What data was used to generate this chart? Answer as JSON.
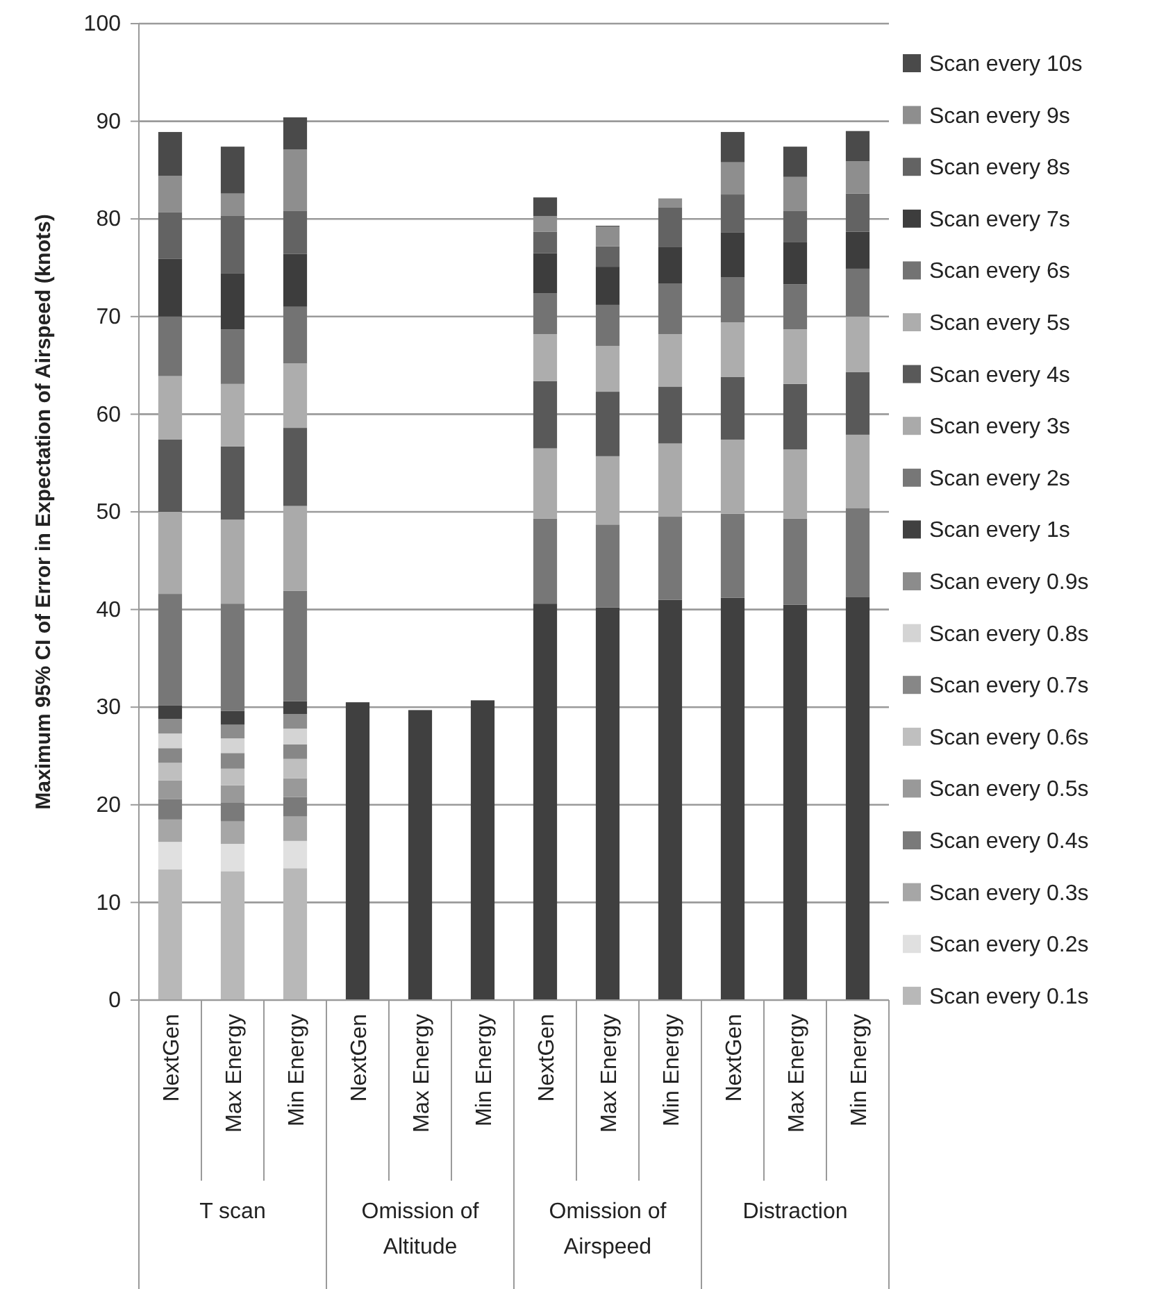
{
  "chart_data": {
    "type": "bar",
    "stacked": true,
    "ylabel": "Maximum 95% CI of Error in Expectation of Airspeed (knots)",
    "categories": [
      "NextGen",
      "Max Energy",
      "Min Energy",
      "NextGen",
      "Max Energy",
      "Min Energy",
      "NextGen",
      "Max Energy",
      "Min Energy",
      "NextGen",
      "Max Energy",
      "Min Energy"
    ],
    "annotations": [
      "T scan",
      "Omission of Altitude",
      "Omission of Airspeed",
      "Distraction"
    ],
    "ylim": [
      0,
      100
    ],
    "yticks": [
      0,
      10,
      20,
      30,
      40,
      50,
      60,
      70,
      80,
      90,
      100
    ],
    "grid": "y",
    "legend": "right",
    "series": [
      {
        "name": "Scan every 0.1s",
        "color": "#b8b8b8",
        "values": [
          13.4,
          13.2,
          13.5,
          0,
          0,
          0,
          0,
          0,
          0,
          0,
          0,
          0
        ]
      },
      {
        "name": "Scan every 0.2s",
        "color": "#e0e0e0",
        "values": [
          2.8,
          2.8,
          2.8,
          0,
          0,
          0,
          0,
          0,
          0,
          0,
          0,
          0
        ]
      },
      {
        "name": "Scan every 0.3s",
        "color": "#a6a6a6",
        "values": [
          2.3,
          2.3,
          2.5,
          0,
          0,
          0,
          0,
          0,
          0,
          0,
          0,
          0
        ]
      },
      {
        "name": "Scan every 0.4s",
        "color": "#7a7a7a",
        "values": [
          2.1,
          1.9,
          2.0,
          0,
          0,
          0,
          0,
          0,
          0,
          0,
          0,
          0
        ]
      },
      {
        "name": "Scan every 0.5s",
        "color": "#999999",
        "values": [
          1.9,
          1.8,
          1.9,
          0,
          0,
          0,
          0,
          0,
          0,
          0,
          0,
          0
        ]
      },
      {
        "name": "Scan every 0.6s",
        "color": "#bfbfbf",
        "values": [
          1.8,
          1.7,
          2.0,
          0,
          0,
          0,
          0,
          0,
          0,
          0,
          0,
          0
        ]
      },
      {
        "name": "Scan every 0.7s",
        "color": "#878787",
        "values": [
          1.5,
          1.6,
          1.5,
          0,
          0,
          0,
          0,
          0,
          0,
          0,
          0,
          0
        ]
      },
      {
        "name": "Scan every 0.8s",
        "color": "#d4d4d4",
        "values": [
          1.5,
          1.5,
          1.6,
          0,
          0,
          0,
          0,
          0,
          0,
          0,
          0,
          0
        ]
      },
      {
        "name": "Scan every 0.9s",
        "color": "#8c8c8c",
        "values": [
          1.5,
          1.4,
          1.5,
          0,
          0,
          0,
          0,
          0,
          0,
          0,
          0,
          0
        ]
      },
      {
        "name": "Scan every 1s",
        "color": "#404040",
        "values": [
          1.4,
          1.4,
          1.3,
          30.5,
          29.7,
          30.7,
          40.6,
          40.2,
          41.0,
          41.2,
          40.5,
          41.3
        ]
      },
      {
        "name": "Scan every 2s",
        "color": "#777777",
        "values": [
          11.4,
          11.0,
          11.3,
          0,
          0,
          0,
          8.7,
          8.5,
          8.5,
          8.6,
          8.8,
          9.1
        ]
      },
      {
        "name": "Scan every 3s",
        "color": "#aaaaaa",
        "values": [
          8.4,
          8.6,
          8.7,
          0,
          0,
          0,
          7.2,
          7.0,
          7.5,
          7.6,
          7.1,
          7.5
        ]
      },
      {
        "name": "Scan every 4s",
        "color": "#595959",
        "values": [
          7.4,
          7.5,
          8.0,
          0,
          0,
          0,
          6.9,
          6.6,
          5.8,
          6.4,
          6.7,
          6.4
        ]
      },
      {
        "name": "Scan every 5s",
        "color": "#adadad",
        "values": [
          6.5,
          6.4,
          6.6,
          0,
          0,
          0,
          4.8,
          4.7,
          5.4,
          5.6,
          5.6,
          5.7
        ]
      },
      {
        "name": "Scan every 6s",
        "color": "#737373",
        "values": [
          6.1,
          5.6,
          5.8,
          0,
          0,
          0,
          4.2,
          4.2,
          5.2,
          4.6,
          4.6,
          4.9
        ]
      },
      {
        "name": "Scan every 7s",
        "color": "#3d3d3d",
        "values": [
          5.9,
          5.7,
          5.4,
          0,
          0,
          0,
          4.1,
          3.9,
          3.7,
          4.6,
          4.3,
          3.8
        ]
      },
      {
        "name": "Scan every 8s",
        "color": "#636363",
        "values": [
          4.8,
          5.9,
          4.4,
          0,
          0,
          0,
          2.2,
          2.1,
          4.1,
          3.9,
          3.2,
          3.9
        ]
      },
      {
        "name": "Scan every 9s",
        "color": "#8e8e8e",
        "values": [
          3.7,
          2.3,
          6.3,
          0,
          0,
          0,
          1.6,
          2.0,
          0.9,
          3.3,
          3.5,
          3.3
        ]
      },
      {
        "name": "Scan every 10s",
        "color": "#4a4a4a",
        "values": [
          4.5,
          4.8,
          3.3,
          0,
          0,
          0,
          1.9,
          0.1,
          0,
          3.1,
          3.1,
          3.1
        ]
      }
    ]
  }
}
